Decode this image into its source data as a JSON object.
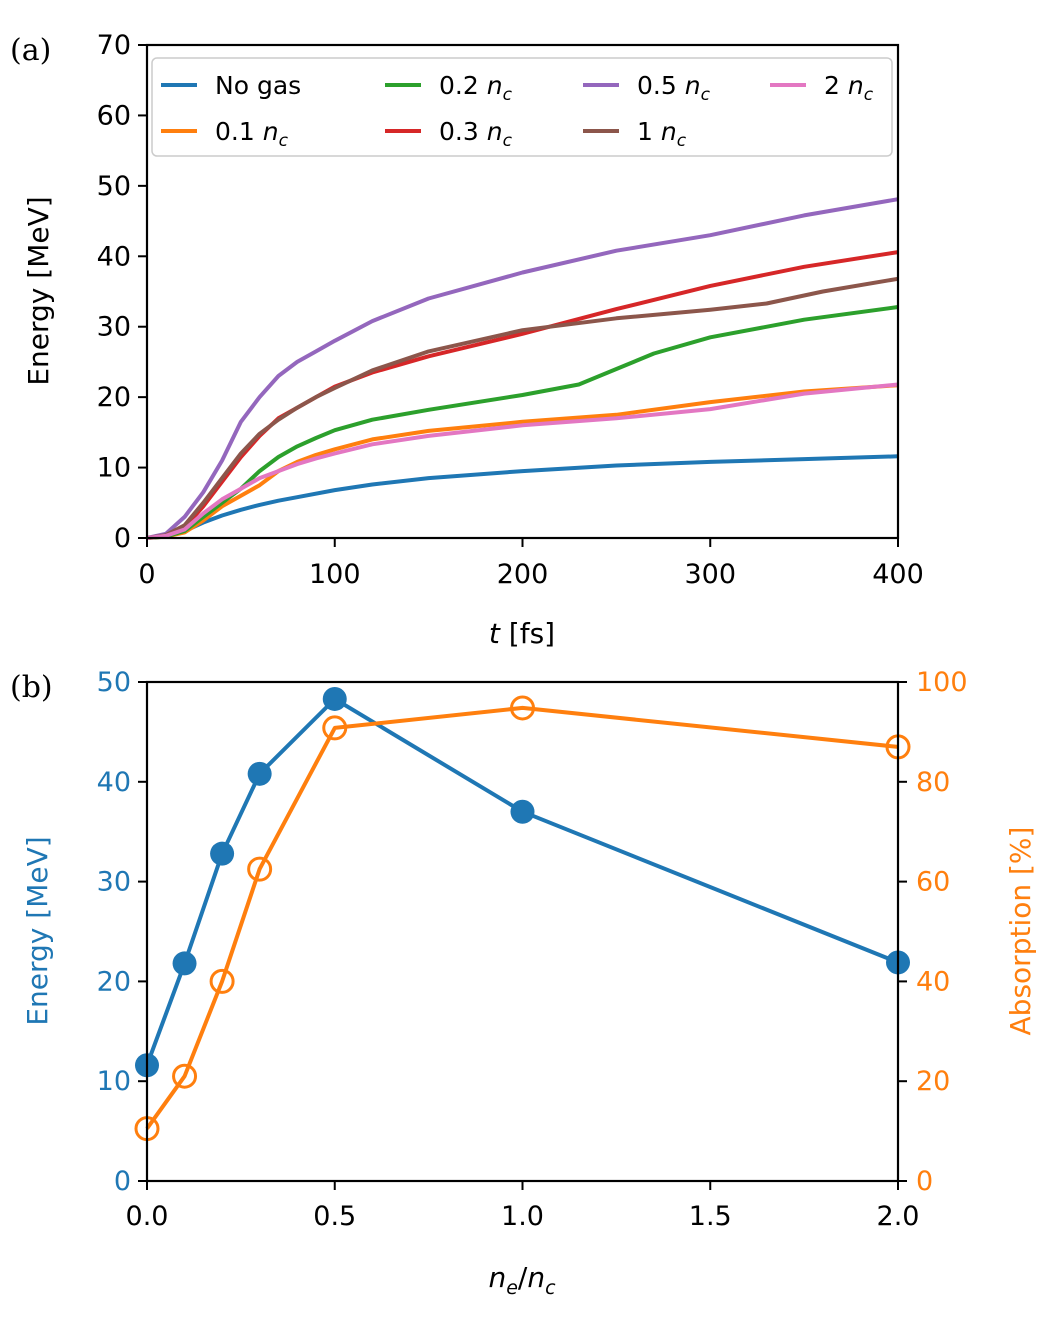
{
  "colors": {
    "No gas": "#1f77b4",
    "0.1": "#ff7f0e",
    "0.2": "#2ca02c",
    "0.3": "#d62728",
    "0.5": "#9467bd",
    "1": "#8c564b",
    "2": "#e377c2",
    "energy": "#1f77b4",
    "absorption": "#ff7f0e"
  },
  "chart_data": [
    {
      "panel": "(a)",
      "type": "line",
      "xlabel_italic": "t",
      "xlabel_rest": "[fs]",
      "ylabel": "Energy [MeV]",
      "xlim": [
        0,
        400
      ],
      "ylim": [
        0,
        70
      ],
      "xticks": [
        0,
        100,
        200,
        300,
        400
      ],
      "yticks": [
        0,
        10,
        20,
        30,
        40,
        50,
        60,
        70
      ],
      "legend_location": "upper-left",
      "legend_columns": 4,
      "series": [
        {
          "name": "No gas",
          "label_plain": "No gas",
          "label_sym": "",
          "color_key": "No gas",
          "x": [
            0,
            10,
            20,
            30,
            40,
            50,
            60,
            70,
            80,
            100,
            120,
            150,
            200,
            250,
            300,
            350,
            400
          ],
          "y": [
            0,
            0.3,
            1.0,
            2.2,
            3.2,
            4.0,
            4.7,
            5.3,
            5.8,
            6.8,
            7.6,
            8.5,
            9.5,
            10.3,
            10.8,
            11.2,
            11.6
          ]
        },
        {
          "name": "0.1 n_c",
          "label_plain": "0.1 ",
          "label_sym": "n",
          "color_key": "0.1",
          "x": [
            0,
            10,
            20,
            30,
            40,
            50,
            60,
            70,
            80,
            90,
            100,
            120,
            150,
            200,
            250,
            300,
            350,
            400
          ],
          "y": [
            0,
            0.2,
            0.8,
            2.5,
            4.5,
            6.0,
            7.5,
            9.5,
            10.8,
            11.8,
            12.6,
            14.0,
            15.2,
            16.5,
            17.5,
            19.3,
            20.8,
            21.7
          ]
        },
        {
          "name": "0.2 n_c",
          "label_plain": "0.2 ",
          "label_sym": "n",
          "color_key": "0.2",
          "x": [
            0,
            10,
            20,
            30,
            40,
            50,
            60,
            70,
            80,
            90,
            100,
            120,
            150,
            200,
            230,
            250,
            270,
            300,
            350,
            400
          ],
          "y": [
            0,
            0.2,
            1.0,
            3.0,
            5.0,
            7.0,
            9.5,
            11.5,
            13.0,
            14.2,
            15.3,
            16.8,
            18.2,
            20.3,
            21.8,
            24.0,
            26.2,
            28.5,
            31.0,
            32.8
          ]
        },
        {
          "name": "0.3 n_c",
          "label_plain": "0.3 ",
          "label_sym": "n",
          "color_key": "0.3",
          "x": [
            0,
            10,
            20,
            30,
            40,
            50,
            60,
            70,
            80,
            90,
            100,
            120,
            150,
            200,
            250,
            300,
            350,
            400
          ],
          "y": [
            0,
            0.3,
            1.5,
            4.5,
            8.0,
            11.5,
            14.5,
            17.0,
            18.5,
            20.0,
            21.5,
            23.5,
            25.8,
            29.0,
            32.5,
            35.8,
            38.5,
            40.6
          ]
        },
        {
          "name": "0.5 n_c",
          "label_plain": "0.5 ",
          "label_sym": "n",
          "color_key": "0.5",
          "x": [
            0,
            10,
            20,
            30,
            40,
            50,
            60,
            70,
            80,
            90,
            100,
            120,
            150,
            200,
            250,
            300,
            350,
            400
          ],
          "y": [
            0,
            0.6,
            3.0,
            6.5,
            11.0,
            16.5,
            20.0,
            23.0,
            25.0,
            26.5,
            28.0,
            30.8,
            34.0,
            37.7,
            40.8,
            43.0,
            45.8,
            48.1
          ]
        },
        {
          "name": "1 n_c",
          "label_plain": "1 ",
          "label_sym": "n",
          "color_key": "1",
          "x": [
            0,
            10,
            20,
            30,
            40,
            50,
            60,
            70,
            80,
            90,
            100,
            120,
            150,
            200,
            250,
            300,
            330,
            360,
            400
          ],
          "y": [
            0,
            0.4,
            1.8,
            5.0,
            8.5,
            12.0,
            14.8,
            16.8,
            18.5,
            20.0,
            21.3,
            23.8,
            26.5,
            29.5,
            31.2,
            32.4,
            33.3,
            35.0,
            36.8
          ]
        },
        {
          "name": "2 n_c",
          "label_plain": "2 ",
          "label_sym": "n",
          "color_key": "2",
          "x": [
            0,
            10,
            20,
            30,
            40,
            50,
            60,
            70,
            80,
            90,
            100,
            120,
            150,
            200,
            250,
            300,
            350,
            400
          ],
          "y": [
            0,
            0.3,
            1.2,
            3.5,
            5.5,
            7.0,
            8.5,
            9.5,
            10.5,
            11.3,
            12.0,
            13.3,
            14.5,
            16.0,
            17.0,
            18.3,
            20.5,
            21.8
          ]
        }
      ]
    },
    {
      "panel": "(b)",
      "type": "line",
      "xlabel": "n_e/n_c",
      "xlim": [
        0,
        2.0
      ],
      "xticks": [
        0.0,
        0.5,
        1.0,
        1.5,
        2.0
      ],
      "xtick_labels": [
        "0.0",
        "0.5",
        "1.0",
        "1.5",
        "2.0"
      ],
      "left_axis": {
        "label": "Energy [MeV]",
        "ylim": [
          0,
          50
        ],
        "yticks": [
          0,
          10,
          20,
          30,
          40,
          50
        ]
      },
      "right_axis": {
        "label": "Absorption [%]",
        "ylim": [
          0,
          100
        ],
        "yticks": [
          0,
          20,
          40,
          60,
          80,
          100
        ]
      },
      "series": [
        {
          "name": "Energy",
          "axis": "left",
          "marker": "filled-circle",
          "color_key": "energy",
          "x": [
            0,
            0.1,
            0.2,
            0.3,
            0.5,
            1.0,
            2.0
          ],
          "y": [
            11.6,
            21.8,
            32.8,
            40.8,
            48.3,
            37.0,
            21.9
          ]
        },
        {
          "name": "Absorption",
          "axis": "right",
          "marker": "open-circle",
          "color_key": "absorption",
          "x": [
            0,
            0.1,
            0.2,
            0.3,
            0.5,
            1.0,
            2.0
          ],
          "y": [
            10.5,
            21.0,
            40.0,
            62.5,
            90.8,
            94.8,
            87.0
          ]
        }
      ]
    }
  ]
}
